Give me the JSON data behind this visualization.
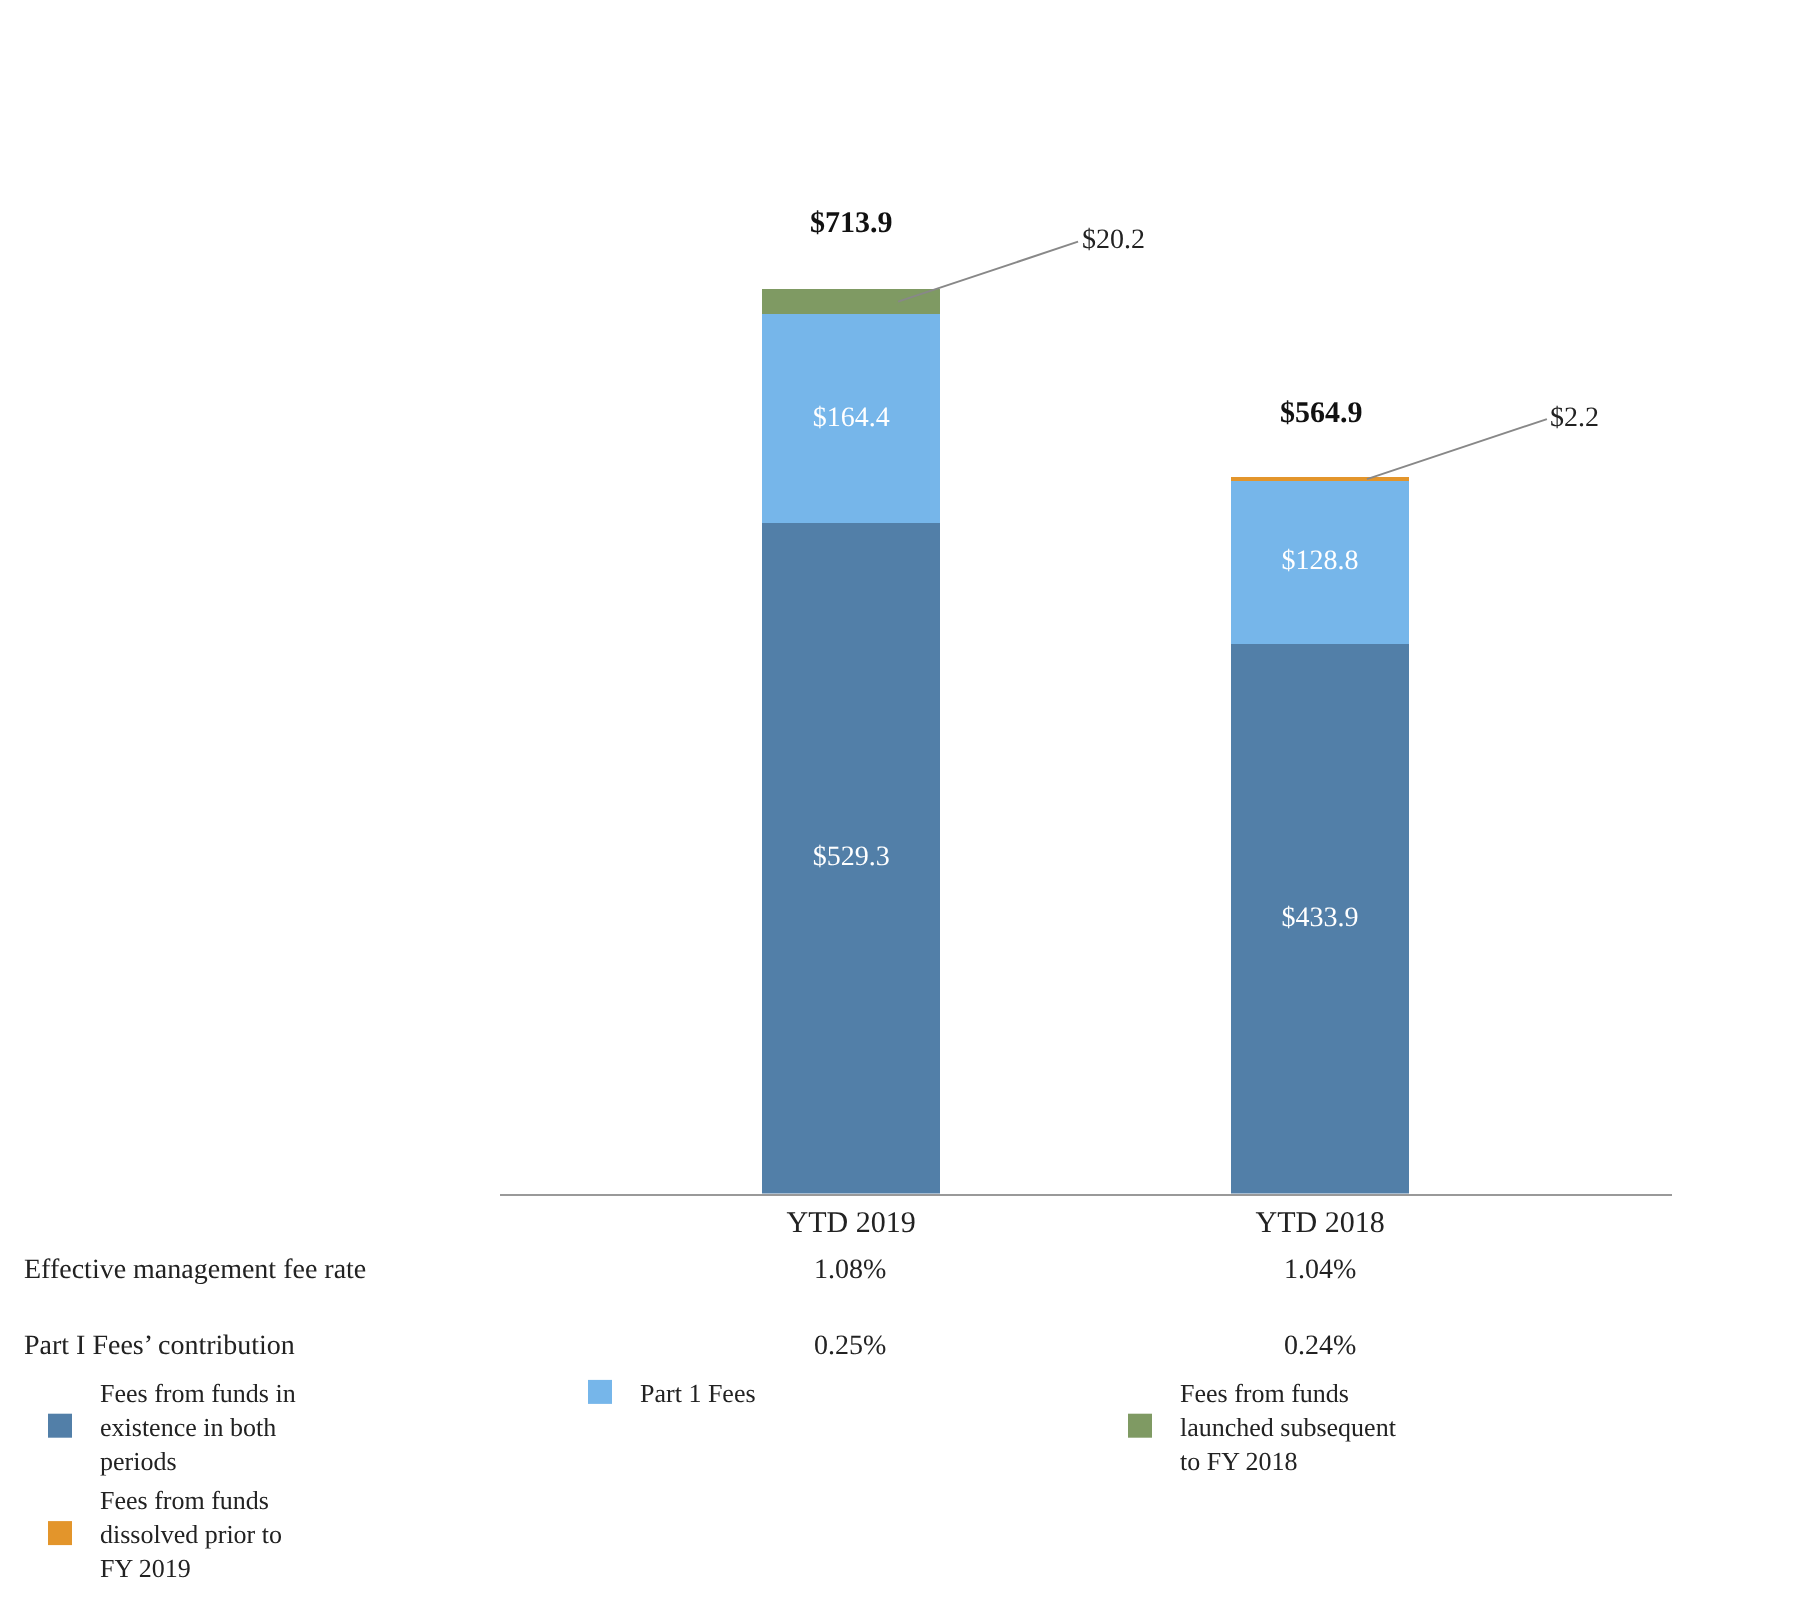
{
  "chart_data": {
    "type": "bar",
    "stacked": true,
    "categories": [
      "YTD 2019",
      "YTD 2018"
    ],
    "series": [
      {
        "name": "Fees from funds in existence in both periods",
        "color": "#527fa8",
        "values": [
          529.3,
          433.9
        ],
        "value_labels": [
          "$529.3",
          "$433.9"
        ]
      },
      {
        "name": "Part 1 Fees",
        "color": "#76b6ea",
        "values": [
          164.4,
          128.8
        ],
        "value_labels": [
          "$164.4",
          "$128.8"
        ]
      },
      {
        "name": "Fees from funds launched subsequent to FY 2018",
        "color": "#7f9a63",
        "values": [
          20.2,
          null
        ],
        "value_labels": [
          "$20.2",
          null
        ]
      },
      {
        "name": "Fees from funds dissolved prior to FY 2019",
        "color": "#e3952b",
        "values": [
          null,
          2.2
        ],
        "value_labels": [
          null,
          "$2.2"
        ]
      }
    ],
    "totals": [
      "$713.9",
      "$564.9"
    ],
    "annotations": [
      "Effective management fee rate",
      "1.08%",
      "1.04%",
      "Part I Fees’ contribution",
      "0.25%",
      "0.24%"
    ],
    "legend": "bottom"
  }
}
